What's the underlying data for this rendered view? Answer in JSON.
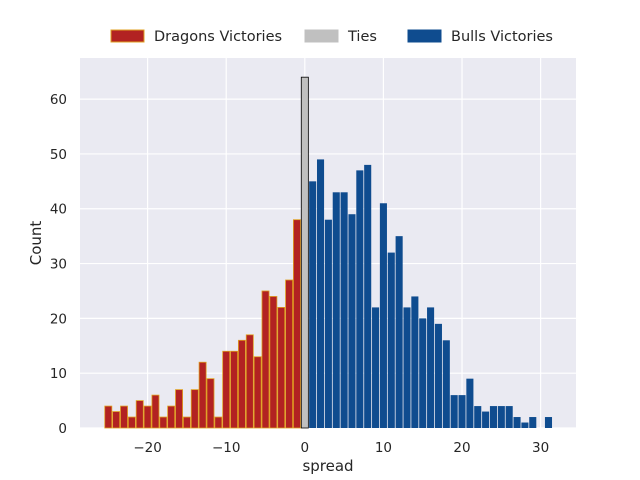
{
  "chart_data": {
    "type": "bar",
    "title": "",
    "xlabel": "spread",
    "ylabel": "Count",
    "xlim": [
      -28.6,
      34.5
    ],
    "ylim": [
      0,
      67.5
    ],
    "xticks": [
      -20,
      -10,
      0,
      10,
      20,
      30
    ],
    "yticks": [
      0,
      10,
      20,
      30,
      40,
      50,
      60
    ],
    "xtick_labels": [
      "−20",
      "−10",
      "0",
      "10",
      "20",
      "30"
    ],
    "ytick_labels": [
      "0",
      "10",
      "20",
      "30",
      "40",
      "50",
      "60"
    ],
    "grid": true,
    "legend_position": "top-center",
    "series": [
      {
        "name": "Dragons Victories",
        "color": "#b22222",
        "edgecolor": "#e0a020",
        "x": [
          -25,
          -24,
          -23,
          -22,
          -21,
          -20,
          -19,
          -18,
          -17,
          -16,
          -15,
          -14,
          -13,
          -12,
          -11,
          -10,
          -9,
          -8,
          -7,
          -6,
          -5,
          -4,
          -3,
          -2,
          -1
        ],
        "values": [
          4,
          3,
          4,
          2,
          5,
          4,
          6,
          2,
          4,
          7,
          2,
          7,
          12,
          9,
          2,
          14,
          14,
          16,
          17,
          13,
          25,
          24,
          22,
          27,
          38
        ]
      },
      {
        "name": "Ties",
        "color": "#c0c0c0",
        "edgecolor": "#000000",
        "x": [
          0
        ],
        "values": [
          64
        ]
      },
      {
        "name": "Bulls Victories",
        "color": "#0f4c8f",
        "edgecolor": "#0f4c8f",
        "x": [
          1,
          2,
          3,
          4,
          5,
          6,
          7,
          8,
          9,
          10,
          11,
          12,
          13,
          14,
          15,
          16,
          17,
          18,
          19,
          20,
          21,
          22,
          23,
          24,
          25,
          26,
          27,
          28,
          29,
          31
        ],
        "values": [
          45,
          49,
          38,
          43,
          43,
          39,
          47,
          48,
          22,
          41,
          32,
          35,
          22,
          24,
          20,
          22,
          19,
          16,
          6,
          6,
          9,
          4,
          3,
          4,
          4,
          4,
          2,
          1,
          2,
          2
        ]
      }
    ]
  }
}
